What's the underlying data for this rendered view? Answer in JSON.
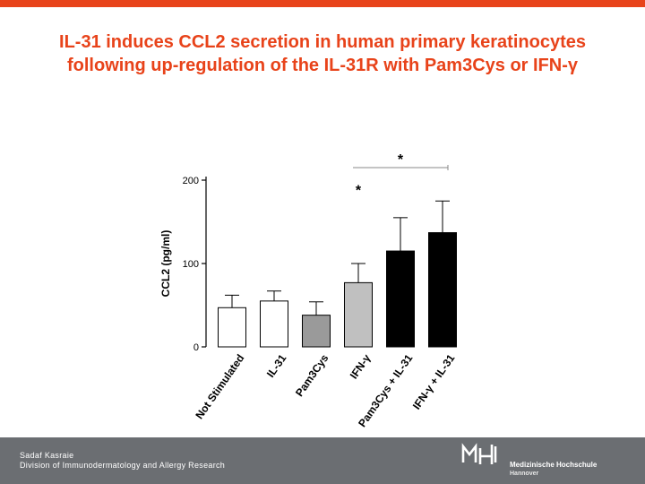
{
  "slide": {
    "title": "IL-31 induces CCL2 secretion in human primary keratinocytes following up-regulation of the IL-31R with Pam3Cys or IFN-γ",
    "accent_color": "#e8431a",
    "footer_color": "#6b6e72"
  },
  "footer": {
    "author": "Sadaf Kasraie",
    "division": "Division of Immunodermatology and Allergy Research",
    "logo_text": "MHH",
    "institution": "Medizinische Hochschule",
    "city": "Hannover"
  },
  "chart_data": {
    "type": "bar",
    "title": "",
    "xlabel": "",
    "ylabel": "CCL2 (pg/ml)",
    "ylim": [
      0,
      200
    ],
    "yticks": [
      0,
      100,
      200
    ],
    "grid": false,
    "categories": [
      "Not Stimulated",
      "IL-31",
      "Pam3Cys",
      "IFN-γ",
      "Pam3Cys + IL-31",
      "IFN-γ + IL-31"
    ],
    "values": [
      47,
      55,
      38,
      77,
      115,
      137
    ],
    "errors": [
      15,
      12,
      16,
      23,
      40,
      38
    ],
    "bar_colors": [
      "#ffffff",
      "#ffffff",
      "#9a9a9a",
      "#c0c0c0",
      "#000000",
      "#000000"
    ],
    "annotations": [
      {
        "text": "*",
        "category_index": 3,
        "y": 195
      },
      {
        "text": "*",
        "bracket_from": 3,
        "bracket_to": 5,
        "y": 215
      }
    ]
  }
}
